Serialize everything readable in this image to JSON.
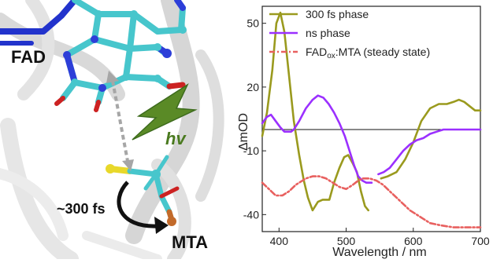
{
  "scene": {
    "labels": {
      "fad": "FAD",
      "hv": "hv",
      "time": "~300 fs",
      "mta": "MTA"
    }
  },
  "chart_data": {
    "type": "line",
    "xlabel": "Wavelength / nm",
    "ylabel": "ΔmOD",
    "xlim": [
      375,
      700
    ],
    "ylim": [
      -48,
      58
    ],
    "xticks": [
      400,
      500,
      600,
      700
    ],
    "yticks": [
      50,
      20,
      -10,
      -40
    ],
    "grid": false,
    "legend_position": "top-right",
    "zero_line": 0,
    "series": [
      {
        "name": "300 fs phase",
        "color": "#9a9a1e",
        "style": "solid",
        "points": [
          [
            375,
            -3
          ],
          [
            382,
            8
          ],
          [
            390,
            28
          ],
          [
            396,
            50
          ],
          [
            402,
            55
          ],
          [
            408,
            46
          ],
          [
            415,
            25
          ],
          [
            422,
            4
          ],
          [
            430,
            -12
          ],
          [
            437,
            -24
          ],
          [
            443,
            -32
          ],
          [
            450,
            -38
          ],
          [
            458,
            -34
          ],
          [
            465,
            -33
          ],
          [
            475,
            -33
          ],
          [
            482,
            -25
          ],
          [
            490,
            -18
          ],
          [
            497,
            -13
          ],
          [
            503,
            -12
          ],
          [
            510,
            -16
          ],
          [
            516,
            -20
          ],
          [
            522,
            -29
          ],
          [
            528,
            -36
          ],
          [
            533,
            -38
          ]
        ]
      },
      {
        "name": "300 fs phase",
        "color": "#9a9a1e",
        "style": "solid",
        "points": [
          [
            552,
            -23
          ],
          [
            562,
            -22
          ],
          [
            575,
            -20
          ],
          [
            588,
            -14
          ],
          [
            600,
            -6
          ],
          [
            612,
            4
          ],
          [
            625,
            10
          ],
          [
            638,
            12
          ],
          [
            650,
            12
          ],
          [
            660,
            13
          ],
          [
            668,
            14
          ],
          [
            676,
            13
          ],
          [
            684,
            11
          ],
          [
            692,
            9
          ],
          [
            700,
            9
          ]
        ]
      },
      {
        "name": "ns phase",
        "color": "#9b30ff",
        "style": "solid",
        "points": [
          [
            375,
            3
          ],
          [
            382,
            6
          ],
          [
            388,
            7
          ],
          [
            395,
            4
          ],
          [
            402,
            1
          ],
          [
            408,
            -1
          ],
          [
            412,
            -1
          ],
          [
            418,
            -1
          ],
          [
            422,
            0
          ],
          [
            430,
            4
          ],
          [
            440,
            10
          ],
          [
            450,
            14
          ],
          [
            458,
            16
          ],
          [
            466,
            15
          ],
          [
            474,
            12
          ],
          [
            482,
            8
          ],
          [
            490,
            3
          ],
          [
            498,
            -3
          ],
          [
            505,
            -10
          ],
          [
            512,
            -17
          ],
          [
            518,
            -22
          ],
          [
            524,
            -24
          ],
          [
            530,
            -25
          ],
          [
            538,
            -25
          ]
        ]
      },
      {
        "name": "ns phase",
        "color": "#9b30ff",
        "style": "solid",
        "points": [
          [
            548,
            -21
          ],
          [
            556,
            -20
          ],
          [
            565,
            -18
          ],
          [
            575,
            -14
          ],
          [
            585,
            -10
          ],
          [
            595,
            -7
          ],
          [
            605,
            -5
          ],
          [
            615,
            -4
          ],
          [
            625,
            -2
          ],
          [
            635,
            -1
          ],
          [
            645,
            0
          ],
          [
            660,
            0
          ],
          [
            680,
            0
          ],
          [
            700,
            0
          ]
        ]
      },
      {
        "name": "FADox:MTA (steady state)",
        "color": "#e8605f",
        "style": "dashdot",
        "points": [
          [
            375,
            -25
          ],
          [
            385,
            -28
          ],
          [
            395,
            -31
          ],
          [
            405,
            -31
          ],
          [
            415,
            -29
          ],
          [
            425,
            -26
          ],
          [
            440,
            -23
          ],
          [
            450,
            -22
          ],
          [
            460,
            -22
          ],
          [
            470,
            -23
          ],
          [
            480,
            -25
          ],
          [
            490,
            -27
          ],
          [
            500,
            -28
          ],
          [
            510,
            -26
          ],
          [
            518,
            -24
          ],
          [
            525,
            -23
          ],
          [
            535,
            -23
          ],
          [
            545,
            -24
          ],
          [
            555,
            -26
          ],
          [
            565,
            -29
          ],
          [
            575,
            -32
          ],
          [
            585,
            -35
          ],
          [
            595,
            -38
          ],
          [
            605,
            -40
          ],
          [
            615,
            -42
          ],
          [
            625,
            -44
          ],
          [
            640,
            -45
          ],
          [
            660,
            -46
          ],
          [
            680,
            -46
          ],
          [
            700,
            -46
          ]
        ]
      }
    ],
    "legend": [
      {
        "label": "300 fs phase",
        "color": "#9a9a1e",
        "style": "solid"
      },
      {
        "label": "ns phase",
        "color": "#9b30ff",
        "style": "solid"
      },
      {
        "label_main": "FAD",
        "label_sub": "ox",
        "label_rest": ":MTA (steady state)",
        "color": "#e8605f",
        "style": "dashdot"
      }
    ]
  }
}
